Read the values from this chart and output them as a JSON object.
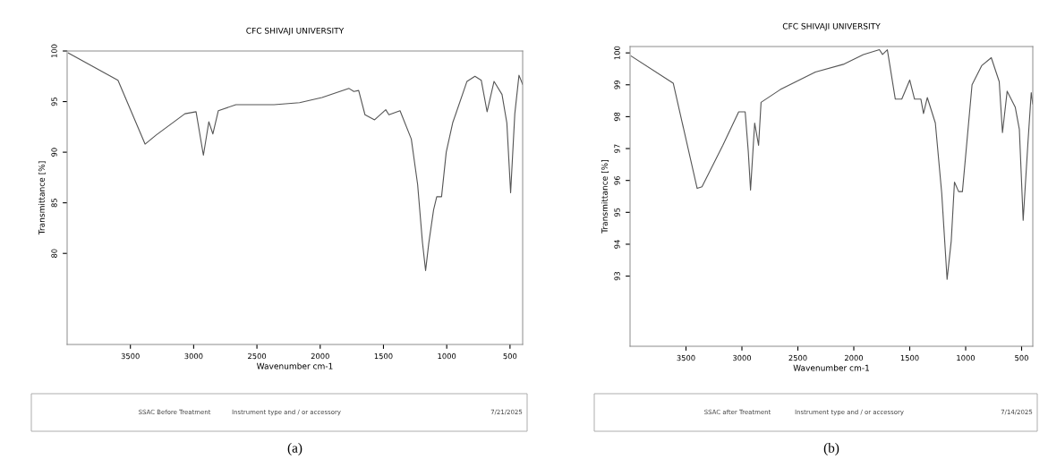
{
  "chart_data": [
    {
      "type": "line",
      "title": "CFC SHIVAJI UNIVERSITY",
      "xlabel": "Wavenumber cm-1",
      "ylabel": "Transmittance [%]",
      "xlim": [
        4000,
        400
      ],
      "xticks": [
        3500,
        3000,
        2500,
        2000,
        1500,
        1000,
        500
      ],
      "ylim": [
        71,
        100
      ],
      "yticks": [
        100,
        95,
        90,
        85,
        80
      ],
      "grid": false,
      "legend": false,
      "series": [
        {
          "color": "#555555",
          "x": [
            3990,
            3598,
            3384,
            3296,
            3069,
            2981,
            2923,
            2880,
            2848,
            2805,
            2666,
            2364,
            2163,
            1986,
            1772,
            1734,
            1696,
            1646,
            1570,
            1482,
            1457,
            1369,
            1280,
            1230,
            1192,
            1167,
            1142,
            1104,
            1079,
            1041,
            1004,
            953,
            840,
            777,
            727,
            681,
            626,
            563,
            525,
            495,
            462,
            429,
            400
          ],
          "values": [
            99.8,
            97.1,
            90.8,
            91.7,
            93.8,
            94.0,
            89.7,
            93.0,
            91.8,
            94.1,
            94.7,
            94.7,
            94.9,
            95.4,
            96.3,
            96.0,
            96.1,
            93.7,
            93.2,
            94.2,
            93.7,
            94.1,
            91.3,
            86.8,
            81.1,
            78.3,
            81.0,
            84.3,
            85.6,
            85.6,
            90.0,
            92.9,
            97.0,
            97.5,
            97.1,
            94.0,
            97.0,
            95.7,
            92.9,
            86.0,
            93.8,
            97.6,
            96.7
          ]
        }
      ],
      "annotations": [
        "SSAC Before Treatment",
        "Instrument type and / or accessory",
        "7/21/2025",
        "(a)"
      ]
    },
    {
      "type": "line",
      "title": "CFC SHIVAJI UNIVERSITY",
      "xlabel": "Wavenumber cm-1",
      "ylabel": "Transmittance [%]",
      "xlim": [
        4000,
        400
      ],
      "xticks": [
        3500,
        3000,
        2500,
        2000,
        1500,
        1000,
        500
      ],
      "ylim": [
        90.8,
        100.2
      ],
      "yticks": [
        100,
        99,
        98,
        97,
        96,
        95,
        94,
        93
      ],
      "grid": false,
      "legend": false,
      "series": [
        {
          "color": "#555555",
          "x": [
            3990,
            3614,
            3400,
            3357,
            3171,
            3029,
            2971,
            2943,
            2923,
            2886,
            2851,
            2829,
            2657,
            2343,
            2086,
            1914,
            1771,
            1743,
            1700,
            1629,
            1571,
            1500,
            1457,
            1400,
            1377,
            1343,
            1271,
            1214,
            1166,
            1129,
            1100,
            1063,
            1029,
            943,
            857,
            771,
            700,
            671,
            629,
            557,
            520,
            486,
            443,
            414,
            400
          ],
          "values": [
            99.9,
            99.05,
            95.75,
            95.8,
            97.1,
            98.15,
            98.15,
            96.9,
            95.7,
            97.8,
            97.1,
            98.45,
            98.85,
            99.4,
            99.65,
            99.95,
            100.1,
            99.95,
            100.1,
            98.55,
            98.55,
            99.15,
            98.55,
            98.55,
            98.1,
            98.6,
            97.8,
            95.6,
            92.9,
            94.1,
            95.95,
            95.65,
            95.65,
            99.0,
            99.6,
            99.85,
            99.1,
            97.5,
            98.8,
            98.3,
            97.6,
            94.75,
            97.2,
            98.75,
            98.4
          ]
        }
      ],
      "annotations": [
        "SSAC after Treatment",
        "Instrument type and / or accessory",
        "7/14/2025",
        "(b)"
      ]
    }
  ]
}
